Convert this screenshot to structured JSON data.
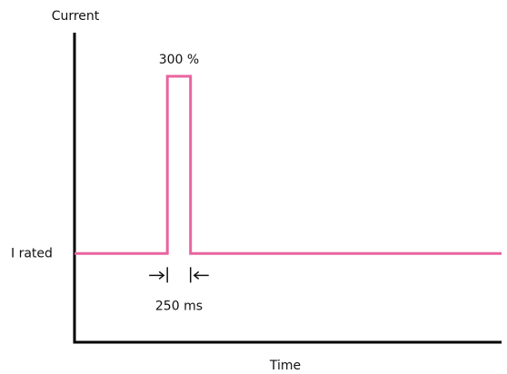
{
  "chart_data": {
    "type": "line",
    "ylabel": "Current",
    "xlabel": "Time",
    "baseline_label": "I rated",
    "peak_label": "300 %",
    "duration_label": "250 ms",
    "series": [
      {
        "x": [
          0,
          1,
          1,
          1.25,
          1.25,
          4.6
        ],
        "y": [
          100,
          100,
          300,
          300,
          100,
          100
        ]
      }
    ],
    "xlim": [
      0,
      4.6
    ],
    "ylim": [
      0,
      345
    ],
    "grid": false,
    "line_color": "#e8649f",
    "axis_color": "#000000"
  }
}
